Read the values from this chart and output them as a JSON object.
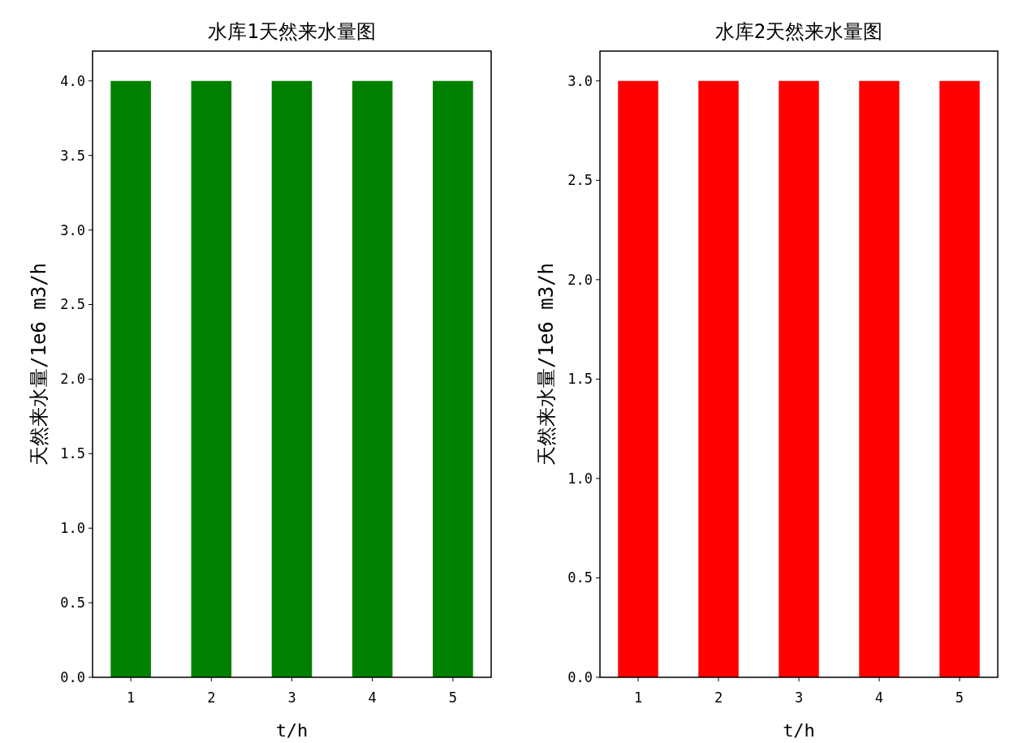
{
  "chart_data": [
    {
      "type": "bar",
      "title": "水库1天然来水量图",
      "xlabel": "t/h",
      "ylabel": "天然来水量/1e6 m3/h",
      "categories": [
        "1",
        "2",
        "3",
        "4",
        "5"
      ],
      "values": [
        4.0,
        4.0,
        4.0,
        4.0,
        4.0
      ],
      "color": "#008000",
      "ylim": [
        0,
        4.2
      ],
      "yticks": [
        {
          "value": 0,
          "label": "0.0"
        },
        {
          "value": 0.5,
          "label": "0.5"
        },
        {
          "value": 1,
          "label": "1.0"
        },
        {
          "value": 1.5,
          "label": "1.5"
        },
        {
          "value": 2,
          "label": "2.0"
        },
        {
          "value": 2.5,
          "label": "2.5"
        },
        {
          "value": 3,
          "label": "3.0"
        },
        {
          "value": 3.5,
          "label": "3.5"
        },
        {
          "value": 4,
          "label": "4.0"
        }
      ]
    },
    {
      "type": "bar",
      "title": "水库2天然来水量图",
      "xlabel": "t/h",
      "ylabel": "天然来水量/1e6 m3/h",
      "categories": [
        "1",
        "2",
        "3",
        "4",
        "5"
      ],
      "values": [
        3.0,
        3.0,
        3.0,
        3.0,
        3.0
      ],
      "color": "#ff0000",
      "ylim": [
        0,
        3.15
      ],
      "yticks": [
        {
          "value": 0,
          "label": "0.0"
        },
        {
          "value": 0.5,
          "label": "0.5"
        },
        {
          "value": 1,
          "label": "1.0"
        },
        {
          "value": 1.5,
          "label": "1.5"
        },
        {
          "value": 2,
          "label": "2.0"
        },
        {
          "value": 2.5,
          "label": "2.5"
        },
        {
          "value": 3,
          "label": "3.0"
        }
      ]
    }
  ]
}
